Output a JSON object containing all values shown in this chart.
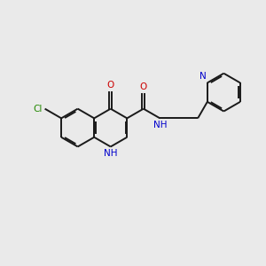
{
  "background_color": "#eaeaea",
  "bond_color": "#1a1a1a",
  "nitrogen_color": "#0000cc",
  "oxygen_color": "#cc0000",
  "chlorine_color": "#228800",
  "font_size": 7.5,
  "linewidth": 1.4,
  "xlim": [
    0,
    10
  ],
  "ylim": [
    0,
    10
  ],
  "figsize": [
    3.0,
    3.0
  ],
  "dpi": 100
}
